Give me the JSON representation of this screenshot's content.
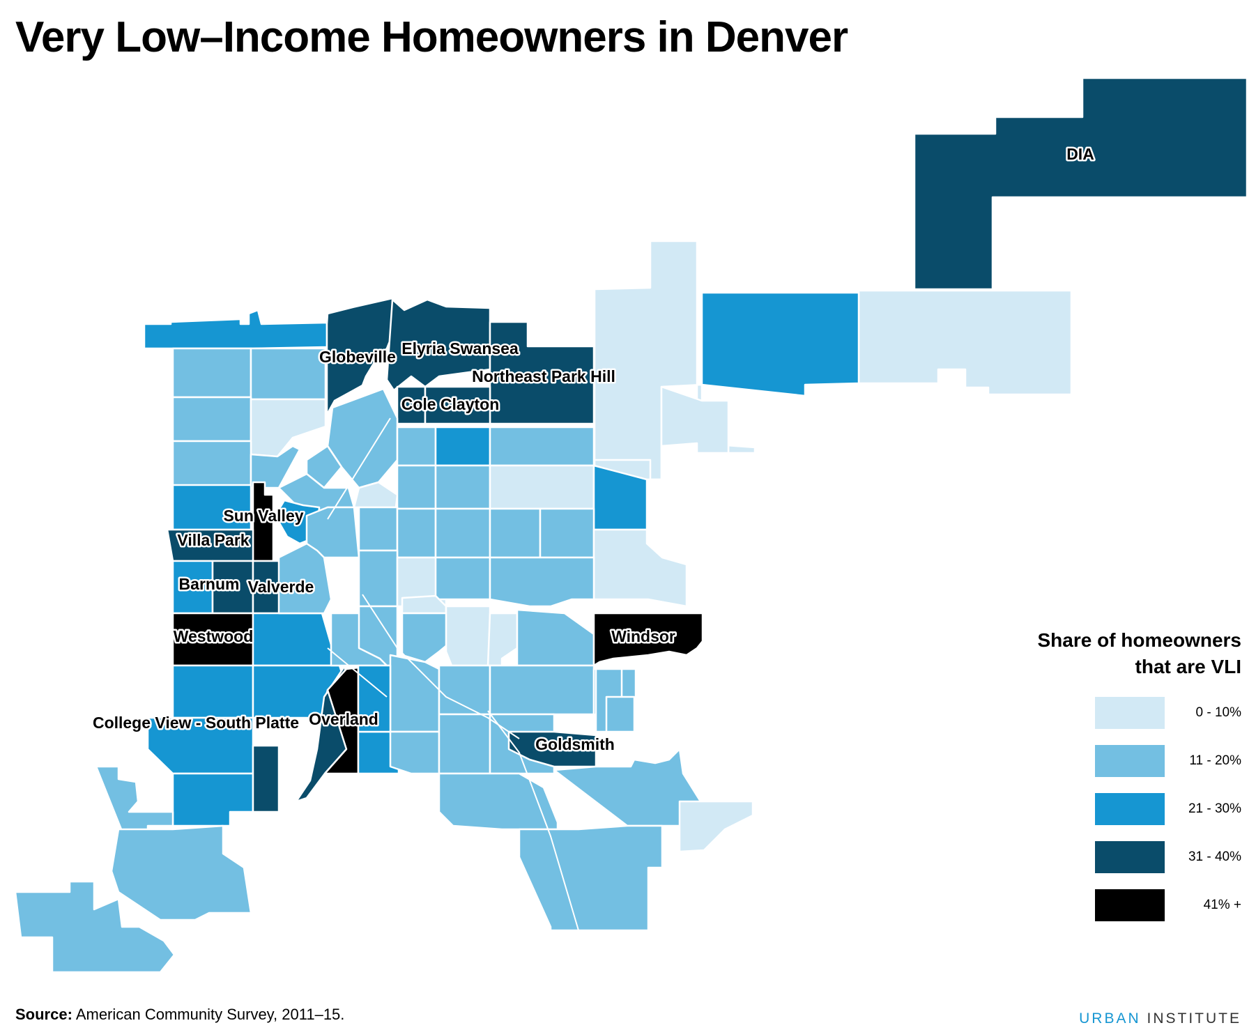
{
  "title": "Very Low–Income Homeowners in Denver",
  "map": {
    "fill_colors": {
      "bin0": "#d2e9f5",
      "bin1": "#73bfe2",
      "bin2": "#1696d2",
      "bin3": "#0a4c6a",
      "bin4": "#000000"
    },
    "neighborhood_labels": [
      "DIA",
      "Globeville",
      "Elyria Swansea",
      "Northeast Park Hill",
      "Cole Clayton",
      "Sun Valley",
      "Villa Park",
      "Barnum",
      "Valverde",
      "Westwood",
      "Windsor",
      "College View - South Platte",
      "Overland",
      "Goldsmith"
    ]
  },
  "legend": {
    "title_line1": "Share of homeowners",
    "title_line2": "that are VLI",
    "items": [
      {
        "label": "0 - 10%",
        "color": "#d2e9f5"
      },
      {
        "label": "11 - 20%",
        "color": "#73bfe2"
      },
      {
        "label": "21 - 30%",
        "color": "#1696d2"
      },
      {
        "label": "31 - 40%",
        "color": "#0a4c6a"
      },
      {
        "label": "41% +",
        "color": "#000000"
      }
    ]
  },
  "source": {
    "label": "Source:",
    "text": " American Community Survey, 2011–15."
  },
  "brand": {
    "part1": "URBAN",
    "part2": " INSTITUTE"
  }
}
